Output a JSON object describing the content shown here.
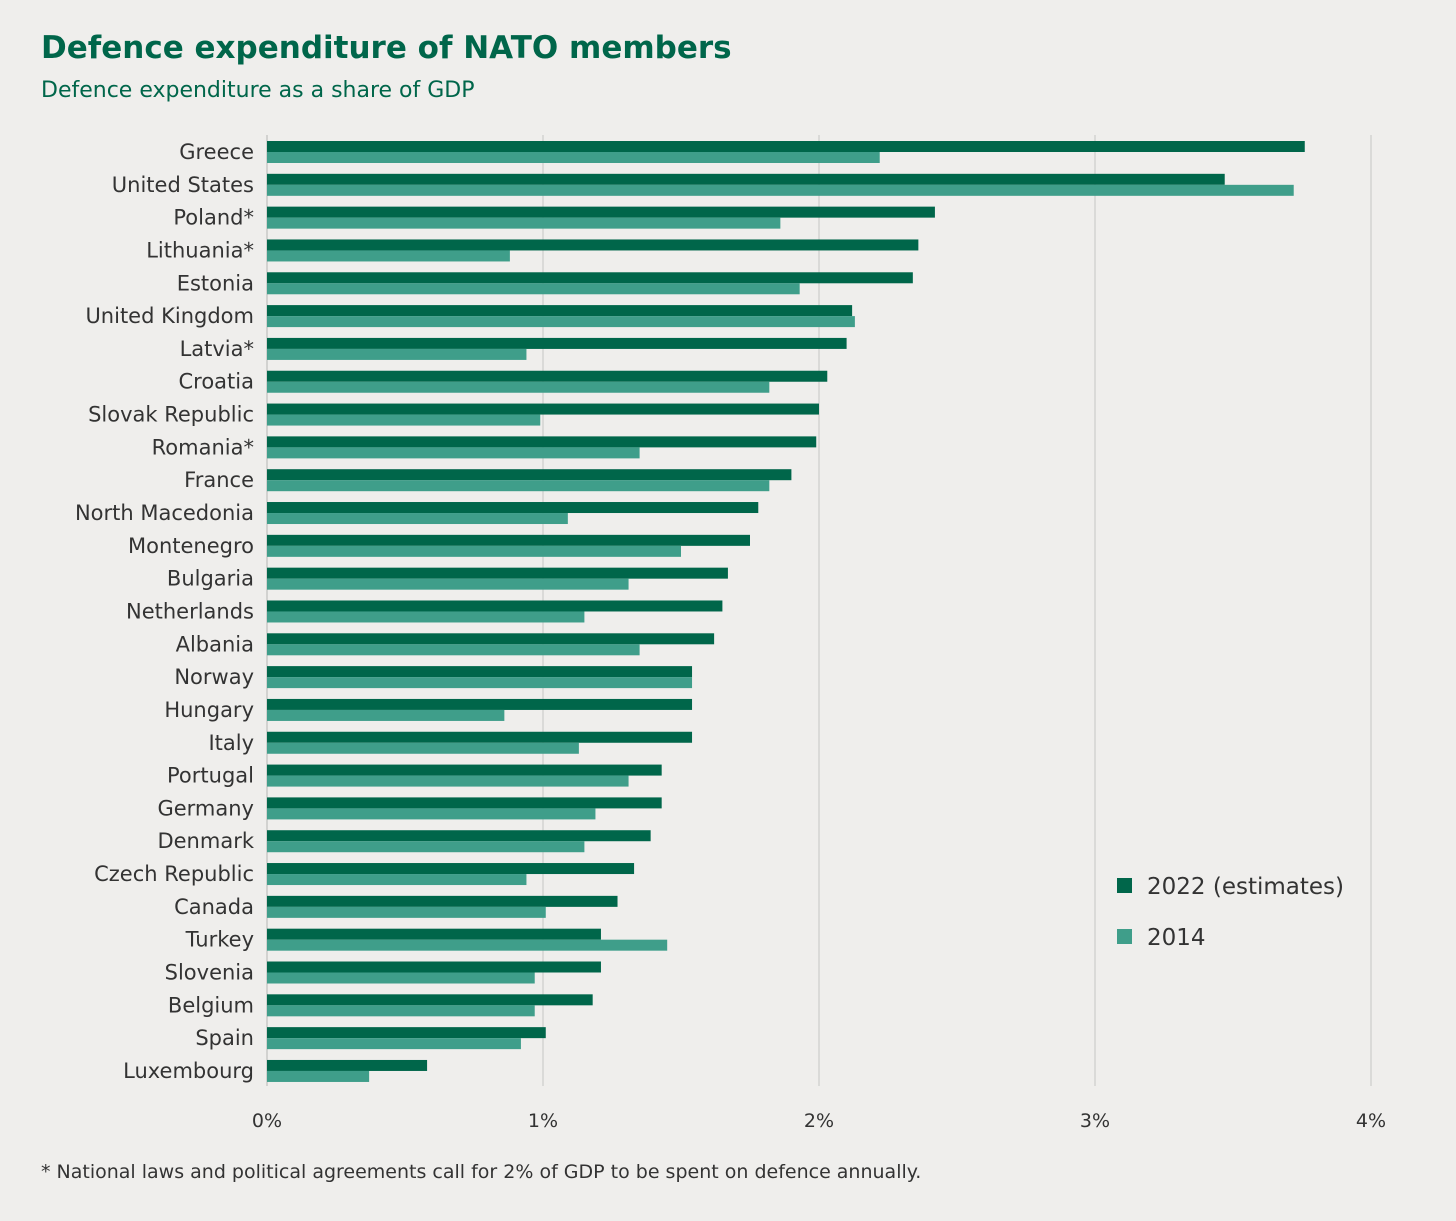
{
  "chart_data": {
    "type": "bar",
    "orientation": "horizontal",
    "title": "Defence expenditure of NATO members",
    "subtitle": "Defence expenditure as a share of GDP",
    "footnote": "* National laws and political agreements call for 2% of GDP to be spent on defence annually.",
    "xlabel": "",
    "ylabel": "",
    "xlim": [
      0,
      4
    ],
    "xticks": [
      "0%",
      "1%",
      "2%",
      "3%",
      "4%"
    ],
    "grid": true,
    "legend_position": "bottom-right",
    "categories": [
      "Greece",
      "United States",
      "Poland*",
      "Lithuania*",
      "Estonia",
      "United Kingdom",
      "Latvia*",
      "Croatia",
      "Slovak Republic",
      "Romania*",
      "France",
      "North Macedonia",
      "Montenegro",
      "Bulgaria",
      "Netherlands",
      "Albania",
      "Norway",
      "Hungary",
      "Italy",
      "Portugal",
      "Germany",
      "Denmark",
      "Czech Republic",
      "Canada",
      "Turkey",
      "Slovenia",
      "Belgium",
      "Spain",
      "Luxembourg"
    ],
    "series": [
      {
        "name": "2022 (estimates)",
        "color": "#00664a",
        "values": [
          3.76,
          3.47,
          2.42,
          2.36,
          2.34,
          2.12,
          2.1,
          2.03,
          2.0,
          1.99,
          1.9,
          1.78,
          1.75,
          1.67,
          1.65,
          1.62,
          1.54,
          1.54,
          1.54,
          1.43,
          1.43,
          1.39,
          1.33,
          1.27,
          1.21,
          1.21,
          1.18,
          1.01,
          0.58
        ]
      },
      {
        "name": "2014",
        "color": "#3f9e8a",
        "values": [
          2.22,
          3.72,
          1.86,
          0.88,
          1.93,
          2.13,
          0.94,
          1.82,
          0.99,
          1.35,
          1.82,
          1.09,
          1.5,
          1.31,
          1.15,
          1.35,
          1.54,
          0.86,
          1.13,
          1.31,
          1.19,
          1.15,
          0.94,
          1.01,
          1.45,
          0.97,
          0.97,
          0.92,
          0.37
        ]
      }
    ]
  }
}
